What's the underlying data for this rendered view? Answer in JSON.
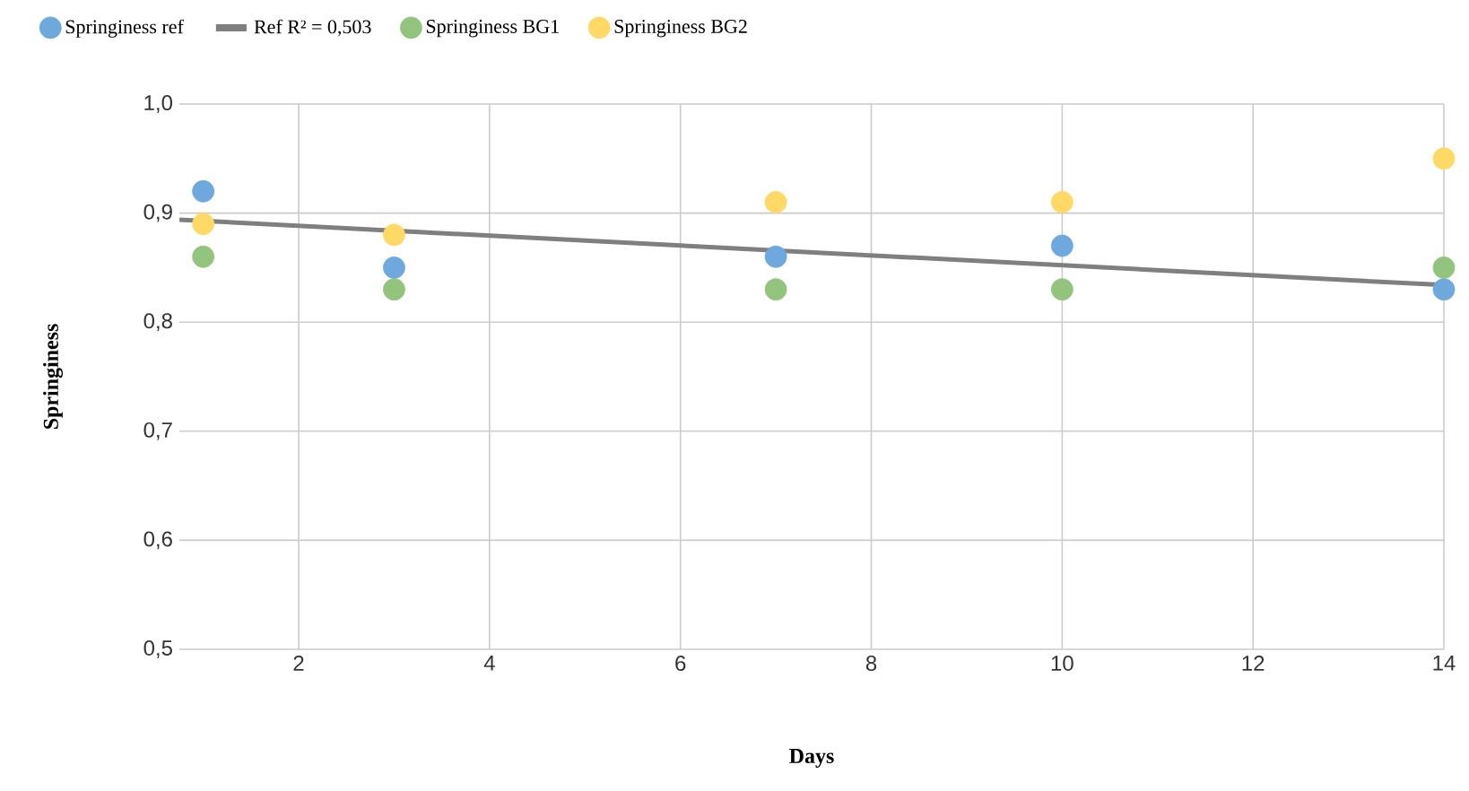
{
  "chart_data": {
    "type": "scatter",
    "xlabel": "Days",
    "ylabel": "Springiness",
    "xlim": [
      0.75,
      14
    ],
    "ylim": [
      0.5,
      1.0
    ],
    "xticks": [
      2,
      4,
      6,
      8,
      10,
      12,
      14
    ],
    "yticks": [
      {
        "value": 0.5,
        "label": "0,5"
      },
      {
        "value": 0.6,
        "label": "0,6"
      },
      {
        "value": 0.7,
        "label": "0,7"
      },
      {
        "value": 0.8,
        "label": "0,8"
      },
      {
        "value": 0.9,
        "label": "0,9"
      },
      {
        "value": 1.0,
        "label": "1,0"
      }
    ],
    "x": [
      1,
      3,
      7,
      10,
      14
    ],
    "series": [
      {
        "name": "Springiness ref",
        "color": "#6fa8dc",
        "values": [
          0.92,
          0.85,
          0.86,
          0.87,
          0.83
        ]
      },
      {
        "name": "Ref R² = 0,503",
        "type": "line",
        "marker": "none",
        "color": "#7f7f7f",
        "x": [
          0.75,
          14
        ],
        "values": [
          0.894,
          0.834
        ]
      },
      {
        "name": "Springiness BG1",
        "color": "#93c47d",
        "values": [
          0.86,
          0.83,
          0.83,
          0.83,
          0.85
        ]
      },
      {
        "name": "Springiness BG2",
        "color": "#ffd966",
        "values": [
          0.89,
          0.88,
          0.91,
          0.91,
          0.95
        ]
      }
    ],
    "grid": true,
    "legend": "top",
    "marker": "circle"
  }
}
